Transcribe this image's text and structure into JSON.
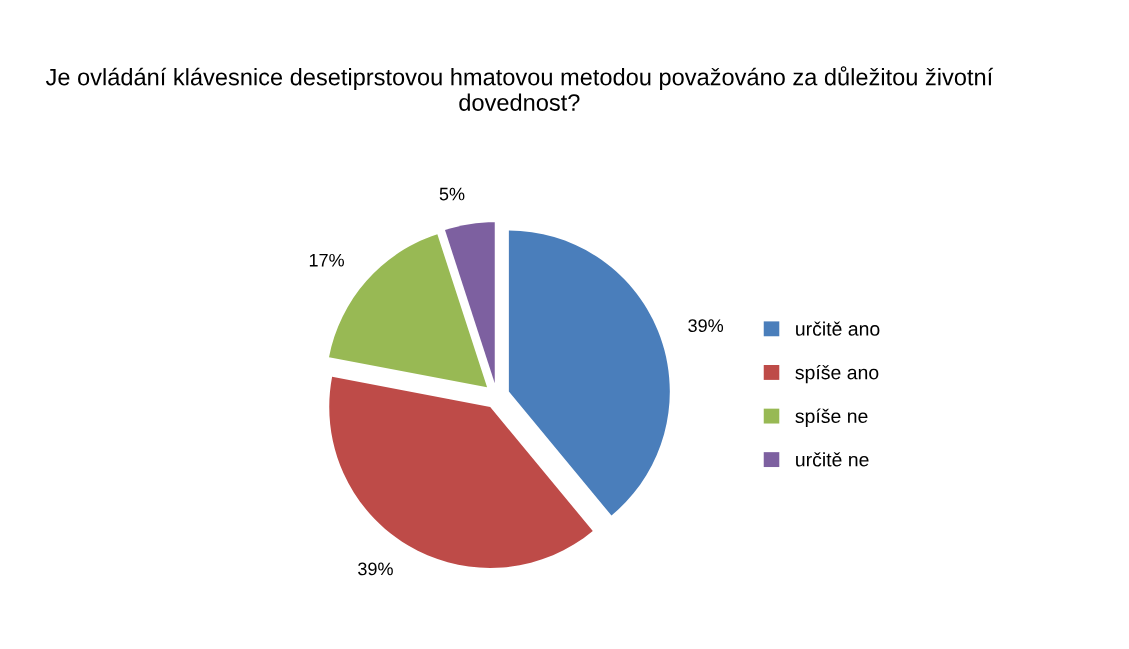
{
  "chart_data": {
    "type": "pie",
    "title": "Je ovládání klávesnice desetiprstovou hmatovou metodou považováno za důležitou životní dovednost?",
    "categories": [
      "určitě ano",
      "spíše ano",
      "spíše ne",
      "určitě ne"
    ],
    "values": [
      39,
      39,
      17,
      5
    ],
    "colors": [
      "#4a7ebb",
      "#be4b48",
      "#98b954",
      "#7d60a0"
    ],
    "value_labels": [
      "39%",
      "39%",
      "17%",
      "5%"
    ],
    "legend": "right"
  }
}
